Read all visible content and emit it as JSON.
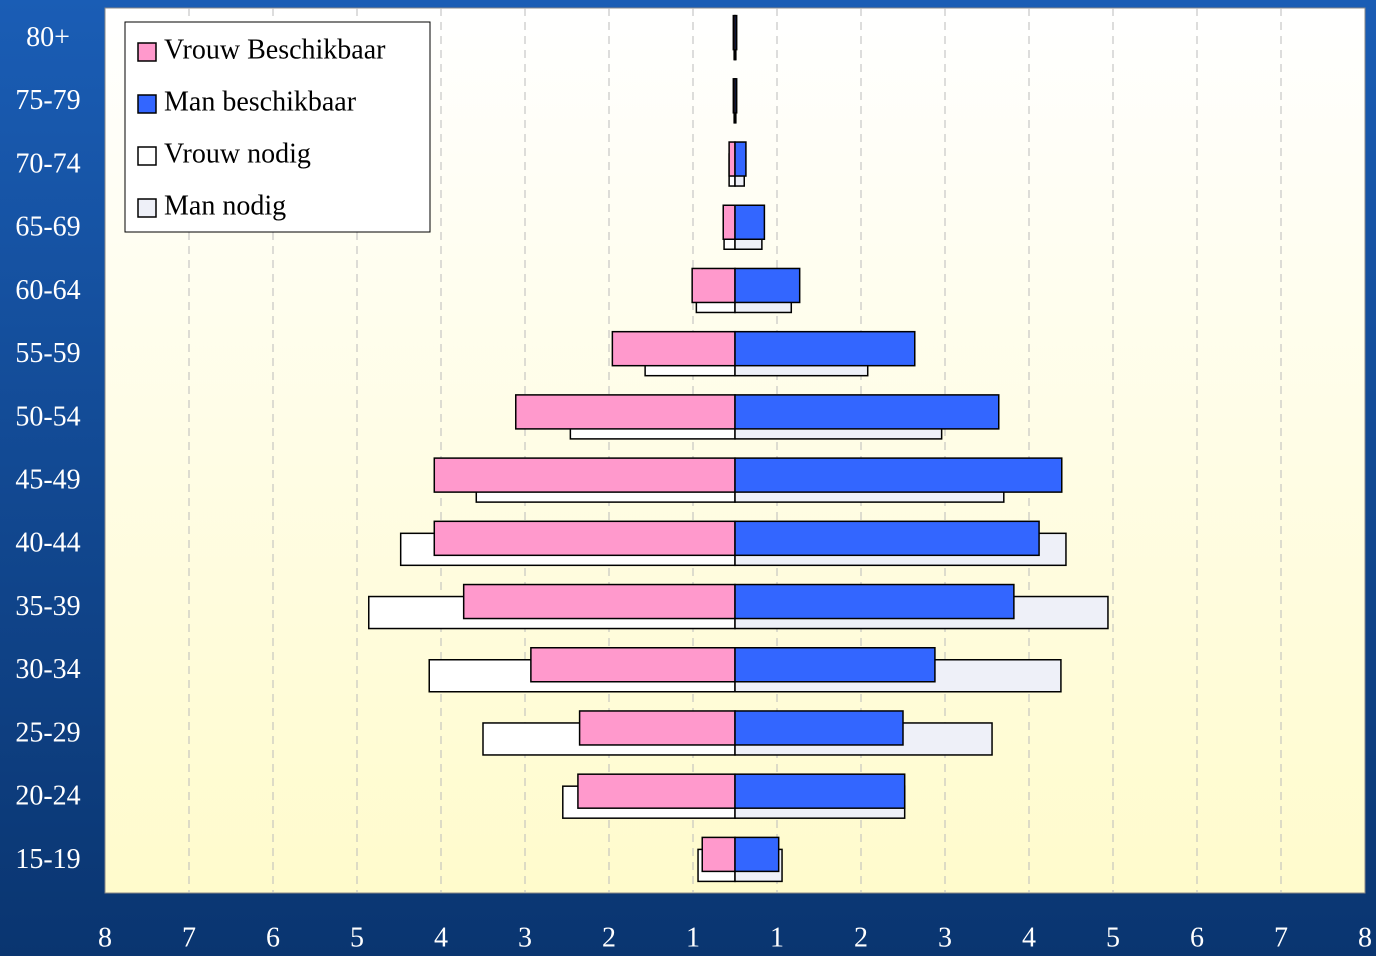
{
  "chart_data": {
    "type": "pyramid",
    "categories": [
      "15-19",
      "20-24",
      "25-29",
      "30-34",
      "35-39",
      "40-44",
      "45-49",
      "50-54",
      "55-59",
      "60-64",
      "65-69",
      "70-74",
      "75-79",
      "80+"
    ],
    "series": [
      {
        "name": "Vrouw Beschikbaar",
        "color": "#ff99cc",
        "values": [
          -0.39,
          -1.87,
          -1.85,
          -2.43,
          -3.23,
          -3.58,
          -3.58,
          -2.61,
          -1.46,
          -0.51,
          -0.14,
          -0.07,
          -0.02,
          -0.02
        ]
      },
      {
        "name": "Man beschikbaar",
        "color": "#3366ff",
        "values": [
          0.52,
          2.02,
          2.0,
          2.38,
          3.32,
          3.62,
          3.89,
          3.14,
          2.14,
          0.77,
          0.35,
          0.13,
          0.02,
          0.02
        ]
      },
      {
        "name": "Vrouw nodig",
        "color": "#ffffff",
        "values": [
          -0.44,
          -2.05,
          -3.0,
          -3.64,
          -4.36,
          -3.98,
          -3.08,
          -1.96,
          -1.07,
          -0.46,
          -0.13,
          -0.07,
          -0.01,
          -0.01
        ]
      },
      {
        "name": "Man nodig",
        "color": "#eef0f8",
        "values": [
          0.56,
          2.02,
          3.06,
          3.88,
          4.44,
          3.94,
          3.2,
          2.46,
          1.58,
          0.67,
          0.32,
          0.11,
          0.01,
          0.01
        ]
      }
    ],
    "xlim": [
      -7.5,
      7.5
    ],
    "xticks": [
      {
        "value": -7.5,
        "label": "8"
      },
      {
        "value": -6.5,
        "label": "7"
      },
      {
        "value": -5.5,
        "label": "6"
      },
      {
        "value": -4.5,
        "label": "5"
      },
      {
        "value": -3.5,
        "label": "4"
      },
      {
        "value": -2.5,
        "label": "3"
      },
      {
        "value": -1.5,
        "label": "2"
      },
      {
        "value": -0.5,
        "label": "1"
      },
      {
        "value": 0.5,
        "label": "1"
      },
      {
        "value": 1.5,
        "label": "2"
      },
      {
        "value": 2.5,
        "label": "3"
      },
      {
        "value": 3.5,
        "label": "4"
      },
      {
        "value": 4.5,
        "label": "5"
      },
      {
        "value": 5.5,
        "label": "6"
      },
      {
        "value": 6.5,
        "label": "7"
      },
      {
        "value": 7.5,
        "label": "8"
      }
    ],
    "grid": true,
    "legend": "top-left"
  }
}
